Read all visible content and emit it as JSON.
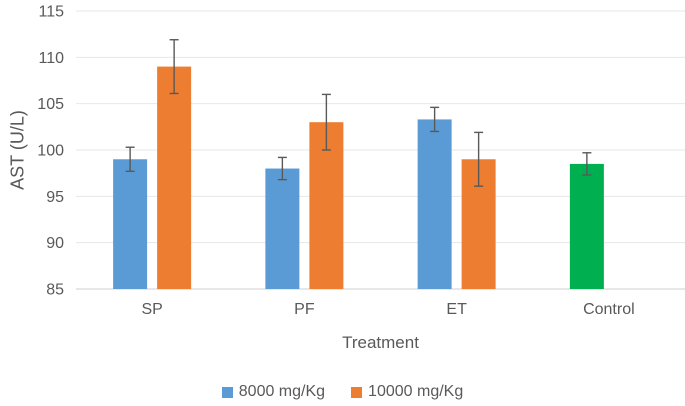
{
  "chart_data": {
    "type": "bar",
    "title": "",
    "xlabel": "Treatment",
    "ylabel": "AST (U/L)",
    "categories": [
      "SP",
      "PF",
      "ET",
      "Control"
    ],
    "series": [
      {
        "name": "8000 mg/Kg",
        "color": "#5B9BD5",
        "slot": 0,
        "show_in_legend": true,
        "values": [
          99,
          98,
          103.3,
          null
        ],
        "errors": [
          1.3,
          1.2,
          1.3,
          null
        ]
      },
      {
        "name": "10000 mg/Kg",
        "color": "#ED7D31",
        "slot": 1,
        "show_in_legend": true,
        "values": [
          109,
          103,
          99,
          null
        ],
        "errors": [
          2.9,
          3.0,
          2.9,
          null
        ]
      },
      {
        "name": "Control",
        "color": "#00B050",
        "slot": 0,
        "show_in_legend": false,
        "values": [
          null,
          null,
          null,
          98.5
        ],
        "errors": [
          null,
          null,
          null,
          1.2
        ]
      }
    ],
    "ylim": [
      85,
      115
    ],
    "yticks": [
      85,
      90,
      95,
      100,
      105,
      110,
      115
    ],
    "grid": true,
    "legend_position": "bottom"
  },
  "palette": {
    "axis_text": "#595959",
    "gridline": "#E7E7E7",
    "axis_line": "#CFCFCF",
    "error_bar": "#595959"
  }
}
